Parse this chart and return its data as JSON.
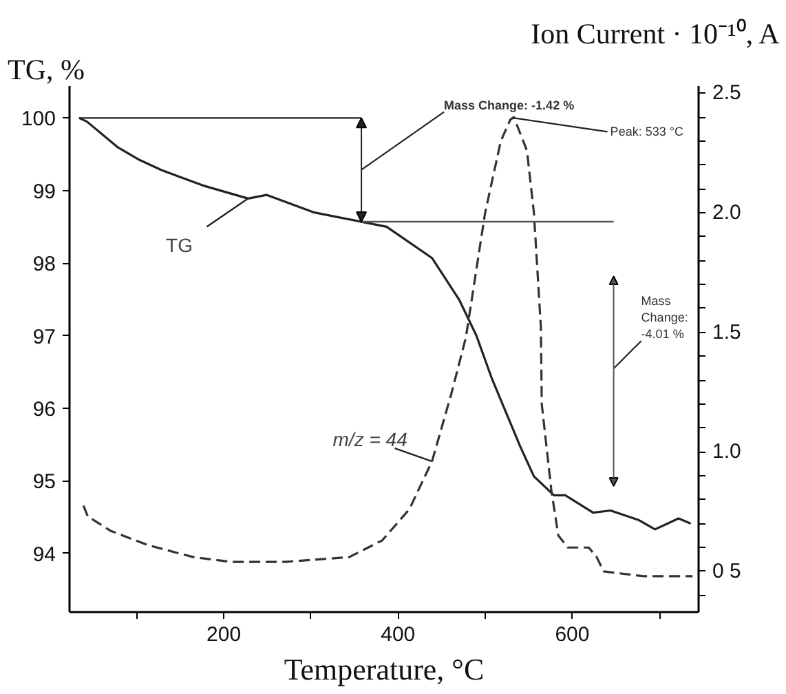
{
  "chart_data": {
    "type": "line",
    "xlabel": "Temperature, °C",
    "ylabel": "TG, %",
    "y2label": "Ion Current · 10⁻¹⁰, A",
    "xlim": [
      23,
      745
    ],
    "ylim": [
      93.19,
      100.44
    ],
    "y2lim": [
      0.33,
      2.53
    ],
    "xticks": [
      {
        "value": 100,
        "label": null
      },
      200,
      {
        "value": 300,
        "label": null
      },
      400,
      {
        "value": 500,
        "label": null
      },
      600,
      {
        "value": 700,
        "label": null
      }
    ],
    "yticks": [
      94,
      95,
      96,
      97,
      98,
      99,
      100
    ],
    "y2ticks": [
      {
        "value": 0.4,
        "label": null
      },
      {
        "value": 0.5,
        "label": "0 5"
      },
      {
        "value": 0.6,
        "label": null
      },
      {
        "value": 0.7,
        "label": null
      },
      {
        "value": 0.8,
        "label": null
      },
      {
        "value": 0.9,
        "label": null
      },
      {
        "value": 1.0,
        "label": "1.0"
      },
      {
        "value": 1.1,
        "label": null
      },
      {
        "value": 1.2,
        "label": null
      },
      {
        "value": 1.3,
        "label": null
      },
      {
        "value": 1.4,
        "label": null
      },
      {
        "value": 1.5,
        "label": "1.5"
      },
      {
        "value": 1.6,
        "label": null
      },
      {
        "value": 1.7,
        "label": null
      },
      {
        "value": 1.8,
        "label": null
      },
      {
        "value": 1.9,
        "label": null
      },
      {
        "value": 2.0,
        "label": "2.0"
      },
      {
        "value": 2.1,
        "label": null
      },
      {
        "value": 2.2,
        "label": null
      },
      {
        "value": 2.3,
        "label": null
      },
      {
        "value": 2.4,
        "label": null
      },
      {
        "value": 2.5,
        "label": "2.5"
      }
    ],
    "grid": false,
    "legend": false,
    "marker": "none",
    "series": [
      {
        "name": "TG",
        "color": "#222222",
        "line_style": "solid",
        "x": [
          34,
          43,
          78,
          102,
          129,
          176,
          228,
          249,
          303,
          358,
          387,
          439,
          470,
          490,
          508,
          540,
          556,
          579,
          592,
          624,
          644,
          676,
          695,
          722,
          736
        ],
        "values": [
          100,
          99.95,
          99.6,
          99.43,
          99.28,
          99.07,
          98.89,
          98.94,
          98.7,
          98.57,
          98.5,
          98.07,
          97.5,
          97.0,
          96.4,
          95.48,
          95.06,
          94.8,
          94.8,
          94.56,
          94.59,
          94.46,
          94.33,
          94.48,
          94.41
        ]
      },
      {
        "name": "m/z = 44",
        "color": "#333333",
        "line_style": "dashed",
        "axis": "y2",
        "x": [
          39,
          44,
          70,
          113,
          165,
          208,
          271,
          344,
          382,
          413,
          439,
          461,
          478,
          500,
          518,
          529,
          533,
          548,
          556,
          564,
          565,
          576,
          584,
          595,
          619,
          628,
          636,
          682,
          738
        ],
        "values": [
          0.775,
          0.73,
          0.67,
          0.61,
          0.56,
          0.54,
          0.54,
          0.56,
          0.63,
          0.76,
          0.96,
          1.24,
          1.48,
          2.0,
          2.3,
          2.39,
          2.4,
          2.26,
          2.0,
          1.52,
          1.2,
          0.84,
          0.65,
          0.6,
          0.6,
          0.56,
          0.5,
          0.48,
          0.48
        ]
      }
    ],
    "ref_lines": [
      {
        "axis": "y",
        "value": 100,
        "label": null,
        "color": "#222222"
      },
      {
        "axis": "y",
        "value": 98.57,
        "label": null,
        "color": "#555555"
      }
    ],
    "annotations": [
      "Mass Change: -1.42 %",
      {
        "text": "Peak: 533 °C",
        "x": 533,
        "y": 100
      },
      "Mass Change: -4.01 %"
    ]
  }
}
